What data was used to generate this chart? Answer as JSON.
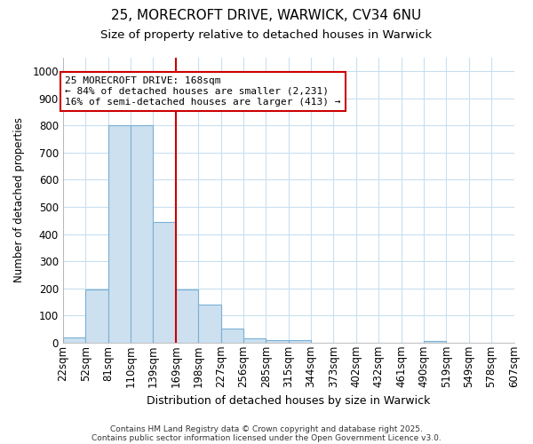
{
  "title_line1": "25, MORECROFT DRIVE, WARWICK, CV34 6NU",
  "title_line2": "Size of property relative to detached houses in Warwick",
  "xlabel": "Distribution of detached houses by size in Warwick",
  "ylabel": "Number of detached properties",
  "bar_values": [
    18,
    197,
    800,
    800,
    445,
    197,
    140,
    50,
    15,
    10,
    10,
    0,
    0,
    0,
    0,
    0,
    5,
    0,
    0,
    0
  ],
  "categories": [
    "22sqm",
    "52sqm",
    "81sqm",
    "110sqm",
    "139sqm",
    "169sqm",
    "198sqm",
    "227sqm",
    "256sqm",
    "285sqm",
    "315sqm",
    "344sqm",
    "373sqm",
    "402sqm",
    "432sqm",
    "461sqm",
    "490sqm",
    "519sqm",
    "549sqm",
    "578sqm",
    "607sqm"
  ],
  "bar_color": "#cce0f0",
  "bar_edge_color": "#7ab0d4",
  "vline_color": "#cc0000",
  "annotation_line1": "25 MORECROFT DRIVE: 168sqm",
  "annotation_line2": "← 84% of detached houses are smaller (2,231)",
  "annotation_line3": "16% of semi-detached houses are larger (413) →",
  "box_edge_color": "#cc0000",
  "ylim": [
    0,
    1050
  ],
  "yticks": [
    0,
    100,
    200,
    300,
    400,
    500,
    600,
    700,
    800,
    900,
    1000
  ],
  "background_color": "#ffffff",
  "grid_color": "#c8dff0",
  "footer_line1": "Contains HM Land Registry data © Crown copyright and database right 2025.",
  "footer_line2": "Contains public sector information licensed under the Open Government Licence v3.0."
}
